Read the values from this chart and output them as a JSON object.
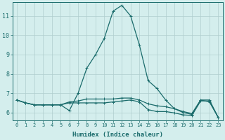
{
  "xlabel": "Humidex (Indice chaleur)",
  "bg_color": "#d4eeed",
  "grid_color": "#b0cece",
  "line_color": "#1a6b6b",
  "xlim": [
    -0.5,
    23.5
  ],
  "ylim": [
    5.6,
    11.7
  ],
  "yticks": [
    6,
    7,
    8,
    9,
    10,
    11
  ],
  "xticks": [
    0,
    1,
    2,
    3,
    4,
    5,
    6,
    7,
    8,
    9,
    10,
    11,
    12,
    13,
    14,
    15,
    16,
    17,
    18,
    19,
    20,
    21,
    22,
    23
  ],
  "curve1_x": [
    0,
    1,
    2,
    3,
    4,
    5,
    6,
    7,
    8,
    9,
    10,
    11,
    12,
    13,
    14,
    15,
    16,
    17,
    18,
    19,
    20,
    21,
    22,
    23
  ],
  "curve1_y": [
    6.65,
    6.5,
    6.4,
    6.4,
    6.4,
    6.4,
    6.1,
    7.0,
    8.3,
    9.0,
    9.85,
    11.25,
    11.55,
    11.0,
    9.5,
    7.65,
    7.25,
    6.65,
    6.2,
    6.0,
    5.9,
    6.65,
    6.65,
    5.75
  ],
  "curve2_x": [
    0,
    1,
    2,
    3,
    4,
    5,
    6,
    7,
    8,
    9,
    10,
    11,
    12,
    13,
    14,
    15,
    16,
    17,
    18,
    19,
    20,
    21,
    22,
    23
  ],
  "curve2_y": [
    6.65,
    6.5,
    6.4,
    6.4,
    6.4,
    6.4,
    6.55,
    6.6,
    6.7,
    6.7,
    6.7,
    6.7,
    6.75,
    6.75,
    6.65,
    6.45,
    6.35,
    6.3,
    6.2,
    6.05,
    5.95,
    6.65,
    6.55,
    5.75
  ],
  "curve3_x": [
    0,
    1,
    2,
    3,
    4,
    5,
    6,
    7,
    8,
    9,
    10,
    11,
    12,
    13,
    14,
    15,
    16,
    17,
    18,
    19,
    20,
    21,
    22,
    23
  ],
  "curve3_y": [
    6.65,
    6.5,
    6.4,
    6.4,
    6.4,
    6.4,
    6.5,
    6.5,
    6.5,
    6.5,
    6.5,
    6.55,
    6.6,
    6.65,
    6.55,
    6.15,
    6.05,
    6.05,
    5.98,
    5.88,
    5.85,
    6.6,
    6.6,
    5.75
  ],
  "markersize": 3,
  "linewidth": 0.9
}
